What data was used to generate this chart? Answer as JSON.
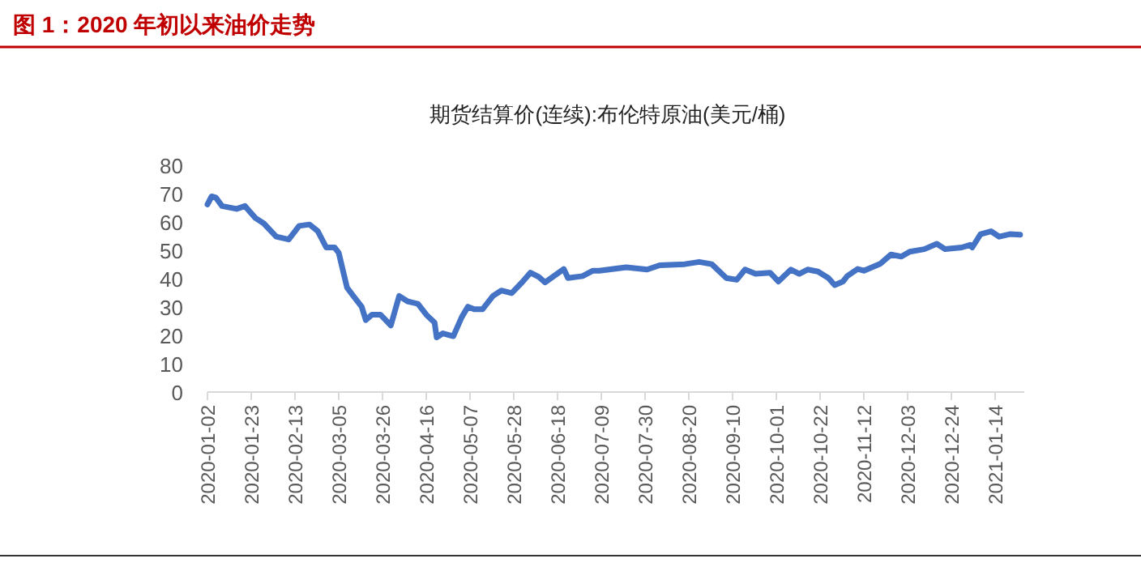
{
  "chart_data": {
    "type": "line",
    "title": "图 1：2020 年初以来油价走势",
    "subtitle": "期货结算价(连续):布伦特原油(美元/桶)",
    "x": [
      "2020-01-02",
      "2020-01-04",
      "2020-01-06",
      "2020-01-09",
      "2020-01-16",
      "2020-01-20",
      "2020-01-25",
      "2020-01-29",
      "2020-02-04",
      "2020-02-10",
      "2020-02-15",
      "2020-02-20",
      "2020-02-24",
      "2020-02-28",
      "2020-03-03",
      "2020-03-05",
      "2020-03-09",
      "2020-03-12",
      "2020-03-16",
      "2020-03-18",
      "2020-03-21",
      "2020-03-25",
      "2020-03-30",
      "2020-04-03",
      "2020-04-07",
      "2020-04-12",
      "2020-04-16",
      "2020-04-20",
      "2020-04-21",
      "2020-04-24",
      "2020-04-29",
      "2020-05-03",
      "2020-05-06",
      "2020-05-09",
      "2020-05-13",
      "2020-05-18",
      "2020-05-22",
      "2020-05-27",
      "2020-06-01",
      "2020-06-05",
      "2020-06-09",
      "2020-06-12",
      "2020-06-21",
      "2020-06-23",
      "2020-06-30",
      "2020-07-05",
      "2020-07-08",
      "2020-07-21",
      "2020-07-31",
      "2020-08-06",
      "2020-08-18",
      "2020-08-25",
      "2020-08-31",
      "2020-09-07",
      "2020-09-12",
      "2020-09-16",
      "2020-09-21",
      "2020-09-28",
      "2020-10-02",
      "2020-10-08",
      "2020-10-12",
      "2020-10-16",
      "2020-10-21",
      "2020-10-26",
      "2020-10-29",
      "2020-11-02",
      "2020-11-04",
      "2020-11-09",
      "2020-11-12",
      "2020-11-20",
      "2020-11-25",
      "2020-11-30",
      "2020-12-04",
      "2020-12-11",
      "2020-12-17",
      "2020-12-21",
      "2020-12-29",
      "2021-01-02",
      "2021-01-03",
      "2021-01-07",
      "2021-01-12",
      "2021-01-16",
      "2021-01-21",
      "2021-01-26"
    ],
    "series": [
      {
        "color": "#4472c4",
        "values": [
          66.2,
          69,
          68.6,
          65.6,
          64.6,
          65.6,
          61.4,
          59.5,
          54.8,
          53.8,
          58.6,
          59.1,
          56.7,
          51,
          51,
          49.1,
          36.8,
          33.9,
          30.1,
          25.4,
          27.3,
          27.3,
          23.5,
          33.9,
          32,
          31.1,
          27.3,
          24.5,
          19.3,
          20.7,
          19.7,
          26.4,
          30.1,
          29.2,
          29.2,
          33.9,
          35.8,
          34.9,
          38.7,
          42.1,
          40.6,
          38.7,
          43.4,
          40.2,
          40.9,
          42.8,
          42.8,
          44,
          43.2,
          44.7,
          45.1,
          45.9,
          45.1,
          40.2,
          39.6,
          43.2,
          41.7,
          42.1,
          39,
          43.2,
          41.7,
          43.2,
          42.5,
          40.2,
          37.7,
          39,
          40.9,
          43.4,
          42.8,
          45.3,
          48.5,
          47.8,
          49.5,
          50.4,
          52.3,
          50.4,
          51,
          51.9,
          51,
          55.7,
          56.7,
          54.8,
          55.7,
          55.5
        ]
      }
    ],
    "xlim": [
      "2020-01-02",
      "2021-01-28"
    ],
    "xticks": [
      "2020-01-02",
      "2020-01-23",
      "2020-02-13",
      "2020-03-05",
      "2020-03-26",
      "2020-04-16",
      "2020-05-07",
      "2020-05-28",
      "2020-06-18",
      "2020-07-09",
      "2020-07-30",
      "2020-08-20",
      "2020-09-10",
      "2020-10-01",
      "2020-10-22",
      "2020-11-12",
      "2020-12-03",
      "2020-12-24",
      "2021-01-14"
    ],
    "ylim": [
      0,
      80
    ],
    "yticks": [
      0,
      10,
      20,
      30,
      40,
      50,
      60,
      70,
      80
    ],
    "grid": false
  }
}
